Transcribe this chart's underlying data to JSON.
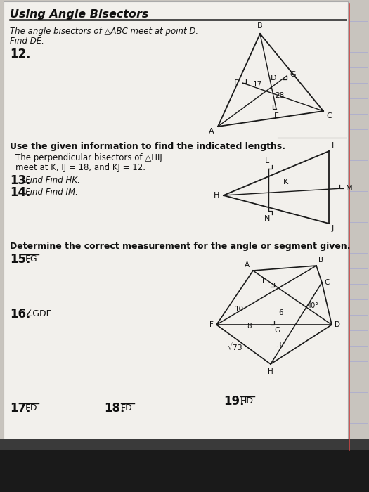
{
  "bg_color": "#c8c4be",
  "paper_color": "#f2f0ec",
  "title": "Using Angle Bisectors",
  "s1_line1": "The angle bisectors of △ABC meet at point D.",
  "s1_line2": "Find DE.",
  "prob12": "12.",
  "s2_title": "Use the given information to find the indicated lengths.",
  "s2_line1": "The perpendicular bisectors of △HIJ",
  "s2_line2": "meet at K, IJ = 18, and KJ = 12.",
  "prob13": "13.",
  "prob13_text": "Find HK.",
  "prob14": "14.",
  "prob14_text": "Find IM.",
  "s3_title": "Determine the correct measurement for the angle or segment given.",
  "prob15": "15.",
  "prob15_text": "EG",
  "prob16": "16.",
  "prob16_text": "∠GDE",
  "prob17": "17.",
  "prob17_text": "ED",
  "prob18": "18.",
  "prob18_text": "FD",
  "prob19": "19.",
  "prob19_text": "HD",
  "tc": "#111111",
  "lc": "#1a1a1a",
  "dot_color": "#777777",
  "notebook_line": "#b0b0cc",
  "red_line": "#cc4444"
}
